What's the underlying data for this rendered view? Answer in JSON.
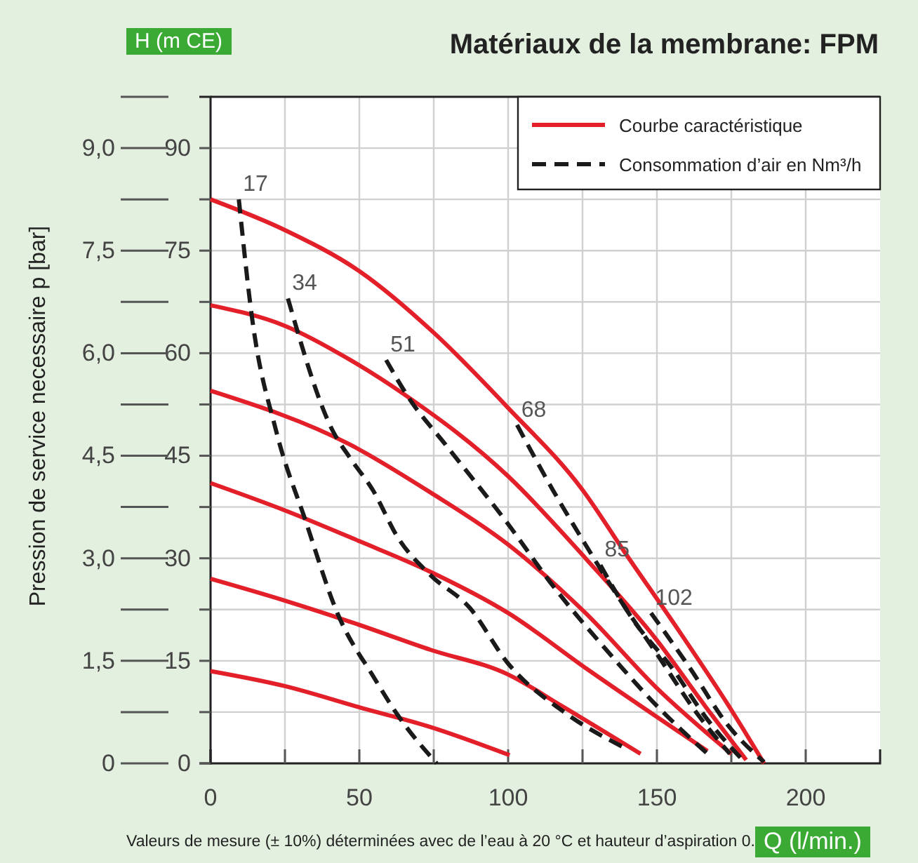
{
  "chart_data": {
    "type": "line",
    "title": "Matériaux de la membrane: FPM",
    "ylabel": "H (m CE)",
    "y2label": "Pression de service necessaire p [bar]",
    "xlabel": "Q (l/min.)",
    "xlim": [
      0,
      225
    ],
    "xticks": [
      0,
      {
        "value": 25,
        "label": null
      },
      50,
      {
        "value": 75,
        "label": null
      },
      100,
      {
        "value": 125,
        "label": null
      },
      150,
      {
        "value": 175,
        "label": null
      },
      200
    ],
    "ylim": [
      0,
      97.5
    ],
    "yticks": [
      0,
      {
        "value": 7.5,
        "label": null
      },
      15,
      {
        "value": 22.5,
        "label": null
      },
      30,
      {
        "value": 37.5,
        "label": null
      },
      45,
      {
        "value": 52.5,
        "label": null
      },
      60,
      {
        "value": 67.5,
        "label": null
      },
      75,
      {
        "value": 82.5,
        "label": null
      },
      90
    ],
    "y2lim": [
      0,
      9.75
    ],
    "y2ticks": [
      0,
      {
        "value": 0.75,
        "label": null
      },
      {
        "value": 1.5,
        "label": "1,5"
      },
      {
        "value": 2.25,
        "label": null
      },
      {
        "value": 3,
        "label": "3,0"
      },
      {
        "value": 3.75,
        "label": null
      },
      {
        "value": 4.5,
        "label": "4,5"
      },
      {
        "value": 5.25,
        "label": null
      },
      {
        "value": 6,
        "label": "6,0"
      },
      {
        "value": 6.75,
        "label": null
      },
      {
        "value": 7.5,
        "label": "7,5"
      },
      {
        "value": 8.25,
        "label": null
      },
      {
        "value": 9,
        "label": "9,0"
      },
      {
        "value": 9.75,
        "label": null
      }
    ],
    "grid": true,
    "legend": "top right",
    "series": [
      {
        "name": "Courbe caractéristique",
        "color": "#e3202a",
        "line_style": "solid",
        "x": [
          0,
          25,
          50,
          75,
          100,
          125,
          139,
          158,
          174,
          186
        ],
        "values": [
          82.5,
          78,
          72,
          63,
          52,
          40,
          31,
          19,
          8.5,
          0
        ]
      },
      {
        "color": "#e3202a",
        "line_style": "solid",
        "x": [
          0,
          25,
          47,
          65,
          100,
          126,
          150,
          166,
          180
        ],
        "values": [
          67,
          64,
          59,
          54,
          42,
          30,
          18,
          8.5,
          0.5
        ]
      },
      {
        "color": "#e3202a",
        "line_style": "solid",
        "x": [
          0,
          47,
          74,
          100,
          126,
          150,
          175
        ],
        "values": [
          54.5,
          46.6,
          39.6,
          32,
          22,
          11,
          1.4
        ]
      },
      {
        "color": "#e3202a",
        "line_style": "solid",
        "x": [
          0,
          25,
          50,
          74,
          100,
          126.5,
          167
        ],
        "values": [
          41,
          37,
          32.5,
          28,
          22,
          13.8,
          1.8
        ]
      },
      {
        "color": "#e3202a",
        "line_style": "solid",
        "x": [
          0,
          25,
          47,
          74,
          100,
          118,
          144.5
        ],
        "values": [
          27,
          23.8,
          20.7,
          16.6,
          13,
          8.4,
          1.4
        ]
      },
      {
        "color": "#e3202a",
        "line_style": "solid",
        "x": [
          0,
          25,
          50,
          74,
          100.5
        ],
        "values": [
          13.5,
          11.3,
          8.2,
          5.3,
          1.2
        ]
      },
      {
        "name": "Consommation d’air en Nm³/h",
        "color": "#1a1a1a",
        "line_style": "dashed",
        "x": [
          9.5,
          14,
          22,
          32,
          42.6,
          55,
          63,
          76
        ],
        "values": [
          82.5,
          65,
          48.7,
          35.4,
          22,
          12.5,
          7,
          0
        ]
      },
      {
        "color": "#1a1a1a",
        "line_style": "dashed",
        "x": [
          26,
          41,
          47,
          54.5,
          63,
          74,
          87,
          100,
          118.5,
          139
        ],
        "values": [
          68,
          48.7,
          44.6,
          40,
          33,
          27.5,
          22.8,
          14.6,
          7.6,
          2.3
        ]
      },
      {
        "color": "#1a1a1a",
        "line_style": "dashed",
        "x": [
          59,
          66.4,
          79,
          100,
          115,
          133,
          150,
          167
        ],
        "values": [
          59,
          53.6,
          46.6,
          35,
          26,
          16.6,
          8.4,
          1.4
        ]
      },
      {
        "color": "#1a1a1a",
        "line_style": "dashed",
        "x": [
          103,
          115,
          126,
          136,
          150,
          164,
          174.5
        ],
        "values": [
          49.5,
          40,
          32,
          25,
          16,
          7,
          1.4
        ]
      },
      {
        "color": "#1a1a1a",
        "line_style": "dashed",
        "x": [
          131,
          142,
          155,
          167,
          179
        ],
        "values": [
          29,
          21,
          14,
          6.4,
          0.4
        ]
      },
      {
        "color": "#1a1a1a",
        "line_style": "dashed",
        "x": [
          148,
          161,
          174,
          186
        ],
        "values": [
          22,
          14,
          5.5,
          0.2
        ]
      }
    ],
    "annotations": [
      {
        "text": "17",
        "x": 9.5,
        "y": 82.5
      },
      {
        "text": "34",
        "x": 26,
        "y": 68
      },
      {
        "text": "51",
        "x": 59,
        "y": 59
      },
      {
        "text": "68",
        "x": 103,
        "y": 49.5
      },
      {
        "text": "85",
        "x": 131,
        "y": 29
      },
      {
        "text": "102",
        "x": 148,
        "y": 22
      },
      "Valeurs de mesure (± 10%) déterminées avec de l’eau à 20 °C et hauteur d’aspiration 0."
    ]
  }
}
